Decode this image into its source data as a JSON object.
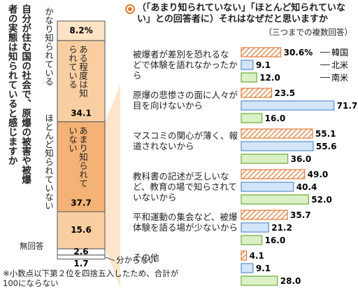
{
  "chart_data": [
    {
      "type": "stacked_bar",
      "title": "自分が住む国の社会で、原爆の被害や被爆者の実態は知られていると感じますか",
      "categories": [
        "かなり知られている",
        "ある程度は知られている",
        "あまり知られていない",
        "ほとんど知られていない",
        "無回答",
        "分からない"
      ],
      "values": [
        8.2,
        34.1,
        37.7,
        15.6,
        2.6,
        1.7
      ],
      "value_labels": [
        "8.2%",
        "34.1",
        "37.7",
        "15.6",
        "2.6",
        "1.7"
      ],
      "colors": [
        "#fbe3c6",
        "#f9cfa2",
        "#f4b277",
        "#f9cfa2",
        "#ffffff",
        "#ffffff"
      ]
    },
    {
      "type": "grouped_bar",
      "title": "（「あまり知られていない」「ほとんど知られていない」との回答者に）それはなぜだと思いますか",
      "subtitle": "（三つまでの複数回答）",
      "categories": [
        "被爆者が差別を恐れるなどで体験を語れなかったから",
        "原爆の悲惨さの面に人々が目を向けないから",
        "マスコミの関心が薄く、報道されないから",
        "教科書の記述が乏しいなど、教育の場で知らされていないから",
        "平和運動の集会など、被爆体験を語る場が少ないから",
        "その他"
      ],
      "series": [
        {
          "name": "韓国",
          "color": "#e07b39",
          "values": [
            30.6,
            23.5,
            55.1,
            49.0,
            35.7,
            4.1
          ],
          "value_labels": [
            "30.6%",
            "23.5",
            "55.1",
            "49.0",
            "35.7",
            "4.1"
          ]
        },
        {
          "name": "北米",
          "color": "#5a8fc8",
          "values": [
            9.1,
            71.7,
            55.6,
            40.4,
            21.2,
            9.1
          ],
          "value_labels": [
            "9.1",
            "71.7",
            "55.6",
            "40.4",
            "21.2",
            "9.1"
          ]
        },
        {
          "name": "南米",
          "color": "#6aaa3a",
          "values": [
            12.0,
            16.0,
            36.0,
            52.0,
            16.0,
            28.0
          ],
          "value_labels": [
            "12.0",
            "16.0",
            "36.0",
            "52.0",
            "16.0",
            "28.0"
          ]
        }
      ]
    }
  ],
  "note": "※小数点以下第２位を四捨五入したため、合計が100にならない"
}
